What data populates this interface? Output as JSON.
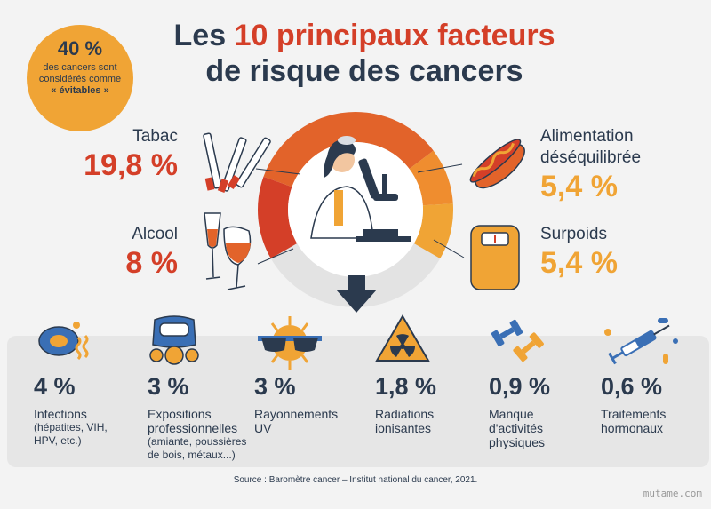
{
  "title": {
    "prefix": "Les ",
    "accent": "10 principaux facteurs",
    "line2": "de risque des cancers"
  },
  "badge": {
    "pct": "40 %",
    "text": "des cancers sont considérés comme",
    "emph": "« évitables »"
  },
  "colors": {
    "red": "#d43f28",
    "orange_dark": "#e2632a",
    "orange": "#ef8d2f",
    "yellow": "#f0a435",
    "navy": "#2b3a4e"
  },
  "chart_data": {
    "type": "pie",
    "title": "Les 10 principaux facteurs de risque des cancers",
    "unit": "%",
    "main_factors": [
      {
        "label": "Tabac",
        "value": 19.8,
        "display": "19,8 %",
        "color": "#d43f28",
        "icon": "cigarettes-icon"
      },
      {
        "label": "Alcool",
        "value": 8,
        "display": "8 %",
        "color": "#d43f28",
        "icon": "wine-glasses-icon"
      },
      {
        "label": "Alimentation déséquilibrée",
        "value": 5.4,
        "display": "5,4 %",
        "color": "#f0a435",
        "icon": "hotdog-icon"
      },
      {
        "label": "Surpoids",
        "value": 5.4,
        "display": "5,4 %",
        "color": "#f0a435",
        "icon": "scale-icon"
      }
    ],
    "other_factors": [
      {
        "label": "Infections",
        "detail": "(hépatites, VIH, HPV, etc.)",
        "value": 4,
        "display": "4 %",
        "icon": "virus-icon"
      },
      {
        "label": "Expositions professionnelles",
        "detail": "(amiante, poussières de bois, métaux...)",
        "value": 3,
        "display": "3 %",
        "icon": "gas-mask-icon"
      },
      {
        "label": "Rayonnements UV",
        "detail": "",
        "value": 3,
        "display": "3 %",
        "icon": "sun-icon"
      },
      {
        "label": "Radiations ionisantes",
        "detail": "",
        "value": 1.8,
        "display": "1,8 %",
        "icon": "radiation-icon"
      },
      {
        "label": "Manque d'activités physiques",
        "detail": "",
        "value": 0.9,
        "display": "0,9 %",
        "icon": "dumbbell-icon"
      },
      {
        "label": "Traitements hormonaux",
        "detail": "",
        "value": 0.6,
        "display": "0,6 %",
        "icon": "syringe-icon"
      }
    ]
  },
  "labels": {
    "tabac_name": "Tabac",
    "tabac_val": "19,8 %",
    "alcool_name": "Alcool",
    "alcool_val": "8 %",
    "alim_name1": "Alimentation",
    "alim_name2": "déséquilibrée",
    "alim_val": "5,4 %",
    "surpoids_name": "Surpoids",
    "surpoids_val": "5,4 %",
    "infections_val": "4 %",
    "infections_name": "Infections",
    "infections_detail": "(hépatites, VIH, HPV, etc.)",
    "expo_val": "3 %",
    "expo_name": "Expositions professionnelles",
    "expo_detail": "(amiante, poussières de bois, métaux...)",
    "uv_val": "3 %",
    "uv_name": "Rayonnements UV",
    "radiation_val": "1,8 %",
    "radiation_name": "Radiations ionisantes",
    "sport_val": "0,9 %",
    "sport_name": "Manque d'activités physiques",
    "hormones_val": "0,6 %",
    "hormones_name": "Traitements hormonaux"
  },
  "source": "Source : Baromètre cancer – Institut national du cancer, 2021.",
  "watermark": "mutame.com"
}
